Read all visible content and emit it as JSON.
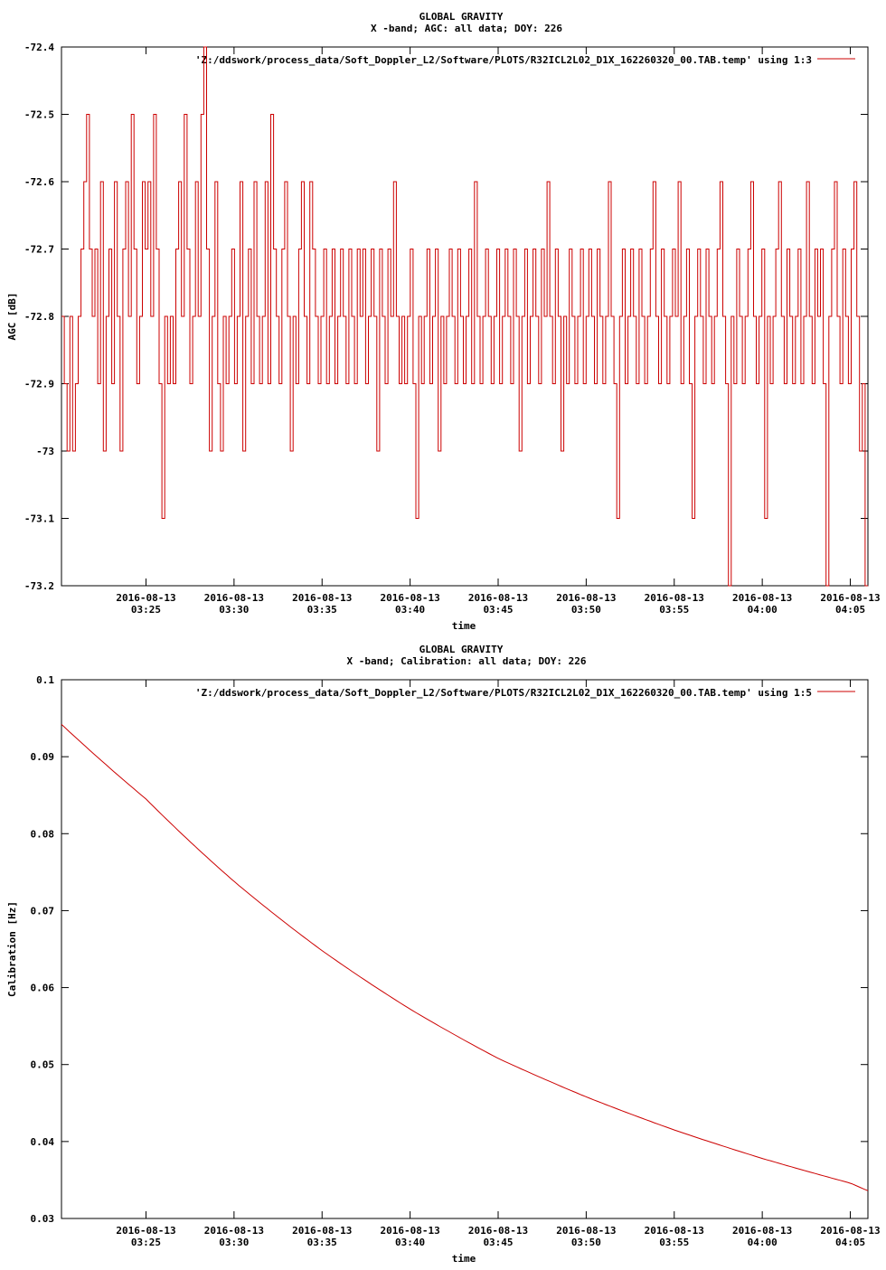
{
  "colors": {
    "series": "#cc0000",
    "axis": "#000000",
    "background": "#ffffff"
  },
  "chart_data": [
    {
      "type": "line",
      "title_line1": "GLOBAL GRAVITY",
      "title_line2": "X -band; AGC: all data; DOY: 226",
      "xlabel": "time",
      "ylabel": "AGC [dB]",
      "legend_label": "'Z:/ddswork/process_data/Soft_Doppler_L2/Software/PLOTS/R32ICL2L02_D1X_162260320_00.TAB.temp' using 1:3",
      "legend_position": "top-right",
      "grid": false,
      "x_range_min": [
        20.2,
        66.0
      ],
      "ylim": [
        -73.2,
        -72.4
      ],
      "ytick_values": [
        -72.4,
        -72.5,
        -72.6,
        -72.7,
        -72.8,
        -72.9,
        -73,
        -73.1,
        -73.2
      ],
      "ytick_labels": [
        "-72.4",
        "-72.5",
        "-72.6",
        "-72.7",
        "-72.8",
        "-72.9",
        "-73",
        "-73.1",
        "-73.2"
      ],
      "xtick_min": [
        25,
        30,
        35,
        40,
        45,
        50,
        55,
        60,
        65
      ],
      "xtick_date": "2016-08-13",
      "xtick_times": [
        "03:25",
        "03:30",
        "03:35",
        "03:40",
        "03:45",
        "03:50",
        "03:55",
        "04:00",
        "04:05"
      ],
      "series": [
        {
          "name": "'Z:/ddswork/process_data/Soft_Doppler_L2/Software/PLOTS/R32ICL2L02_D1X_162260320_00.TAB.temp' using 1:3",
          "x_start_min": 20.2,
          "x_end_min": 66.0,
          "y_values": [
            -72.8,
            -72.9,
            -73,
            -72.8,
            -73,
            -72.9,
            -72.8,
            -72.7,
            -72.6,
            -72.5,
            -72.7,
            -72.8,
            -72.7,
            -72.9,
            -72.6,
            -73,
            -72.8,
            -72.7,
            -72.9,
            -72.6,
            -72.8,
            -73,
            -72.7,
            -72.6,
            -72.8,
            -72.5,
            -72.7,
            -72.9,
            -72.8,
            -72.6,
            -72.7,
            -72.6,
            -72.8,
            -72.5,
            -72.7,
            -72.9,
            -73.1,
            -72.8,
            -72.9,
            -72.8,
            -72.9,
            -72.7,
            -72.6,
            -72.8,
            -72.5,
            -72.7,
            -72.9,
            -72.8,
            -72.6,
            -72.8,
            -72.5,
            -72.4,
            -72.7,
            -73,
            -72.8,
            -72.6,
            -72.9,
            -73,
            -72.8,
            -72.9,
            -72.8,
            -72.7,
            -72.9,
            -72.8,
            -72.6,
            -73,
            -72.8,
            -72.7,
            -72.9,
            -72.6,
            -72.8,
            -72.9,
            -72.8,
            -72.6,
            -72.9,
            -72.5,
            -72.7,
            -72.8,
            -72.9,
            -72.7,
            -72.6,
            -72.8,
            -73,
            -72.8,
            -72.9,
            -72.7,
            -72.6,
            -72.8,
            -72.9,
            -72.6,
            -72.7,
            -72.8,
            -72.9,
            -72.8,
            -72.7,
            -72.9,
            -72.8,
            -72.7,
            -72.9,
            -72.8,
            -72.7,
            -72.8,
            -72.9,
            -72.7,
            -72.8,
            -72.9,
            -72.7,
            -72.8,
            -72.7,
            -72.9,
            -72.8,
            -72.7,
            -72.8,
            -73,
            -72.7,
            -72.8,
            -72.9,
            -72.7,
            -72.8,
            -72.6,
            -72.8,
            -72.9,
            -72.8,
            -72.9,
            -72.8,
            -72.7,
            -72.9,
            -73.1,
            -72.8,
            -72.9,
            -72.8,
            -72.7,
            -72.9,
            -72.8,
            -72.7,
            -73,
            -72.8,
            -72.9,
            -72.8,
            -72.7,
            -72.8,
            -72.9,
            -72.7,
            -72.8,
            -72.9,
            -72.8,
            -72.7,
            -72.9,
            -72.6,
            -72.8,
            -72.9,
            -72.8,
            -72.7,
            -72.8,
            -72.9,
            -72.8,
            -72.7,
            -72.9,
            -72.8,
            -72.7,
            -72.8,
            -72.9,
            -72.7,
            -72.8,
            -73,
            -72.8,
            -72.7,
            -72.9,
            -72.8,
            -72.7,
            -72.8,
            -72.9,
            -72.7,
            -72.8,
            -72.6,
            -72.8,
            -72.9,
            -72.7,
            -72.8,
            -73,
            -72.8,
            -72.9,
            -72.7,
            -72.8,
            -72.9,
            -72.8,
            -72.7,
            -72.9,
            -72.8,
            -72.7,
            -72.8,
            -72.9,
            -72.7,
            -72.8,
            -72.9,
            -72.8,
            -72.6,
            -72.8,
            -72.9,
            -73.1,
            -72.8,
            -72.7,
            -72.9,
            -72.8,
            -72.7,
            -72.8,
            -72.9,
            -72.7,
            -72.8,
            -72.9,
            -72.8,
            -72.7,
            -72.6,
            -72.8,
            -72.9,
            -72.7,
            -72.8,
            -72.9,
            -72.8,
            -72.7,
            -72.8,
            -72.6,
            -72.9,
            -72.8,
            -72.7,
            -72.9,
            -73.1,
            -72.8,
            -72.7,
            -72.8,
            -72.9,
            -72.7,
            -72.8,
            -72.9,
            -72.8,
            -72.7,
            -72.6,
            -72.8,
            -72.9,
            -73.2,
            -72.8,
            -72.9,
            -72.7,
            -72.8,
            -72.9,
            -72.8,
            -72.7,
            -72.6,
            -72.8,
            -72.9,
            -72.8,
            -72.7,
            -73.1,
            -72.8,
            -72.9,
            -72.8,
            -72.7,
            -72.6,
            -72.8,
            -72.9,
            -72.7,
            -72.8,
            -72.9,
            -72.8,
            -72.7,
            -72.9,
            -72.8,
            -72.6,
            -72.8,
            -72.9,
            -72.7,
            -72.8,
            -72.7,
            -72.9,
            -73.2,
            -72.8,
            -72.7,
            -72.6,
            -72.8,
            -72.9,
            -72.7,
            -72.8,
            -72.9,
            -72.7,
            -72.6,
            -72.8,
            -73,
            -72.9,
            -73.2
          ]
        }
      ]
    },
    {
      "type": "line",
      "title_line1": "GLOBAL GRAVITY",
      "title_line2": "X -band; Calibration: all data; DOY: 226",
      "xlabel": "time",
      "ylabel": "Calibration [Hz]",
      "legend_label": "'Z:/ddswork/process_data/Soft_Doppler_L2/Software/PLOTS/R32ICL2L02_D1X_162260320_00.TAB.temp' using 1:5",
      "legend_position": "top-right",
      "grid": false,
      "x_range_min": [
        20.2,
        66.0
      ],
      "ylim": [
        0.03,
        0.1
      ],
      "ytick_values": [
        0.1,
        0.09,
        0.08,
        0.07,
        0.06,
        0.05,
        0.04,
        0.03
      ],
      "ytick_labels": [
        "0.1",
        "0.09",
        "0.08",
        "0.07",
        "0.06",
        "0.05",
        "0.04",
        "0.03"
      ],
      "xtick_min": [
        25,
        30,
        35,
        40,
        45,
        50,
        55,
        60,
        65
      ],
      "xtick_date": "2016-08-13",
      "xtick_times": [
        "03:25",
        "03:30",
        "03:35",
        "03:40",
        "03:45",
        "03:50",
        "03:55",
        "04:00",
        "04:05"
      ],
      "series": [
        {
          "name": "'Z:/ddswork/process_data/Soft_Doppler_L2/Software/PLOTS/R32ICL2L02_D1X_162260320_00.TAB.temp' using 1:5",
          "x": [
            20.2,
            25,
            30,
            35,
            40,
            45,
            50,
            55,
            60,
            65,
            66.0
          ],
          "y": [
            0.0942,
            0.0845,
            0.0738,
            0.0648,
            0.0572,
            0.0508,
            0.0458,
            0.0415,
            0.0378,
            0.0346,
            0.0336
          ]
        }
      ]
    }
  ]
}
